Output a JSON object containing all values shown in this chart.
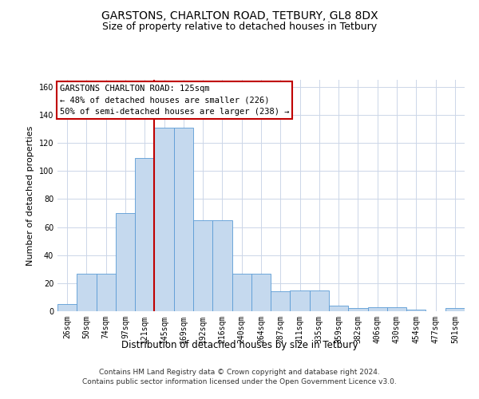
{
  "title": "GARSTONS, CHARLTON ROAD, TETBURY, GL8 8DX",
  "subtitle": "Size of property relative to detached houses in Tetbury",
  "xlabel": "Distribution of detached houses by size in Tetbury",
  "ylabel": "Number of detached properties",
  "categories": [
    "26sqm",
    "50sqm",
    "74sqm",
    "97sqm",
    "121sqm",
    "145sqm",
    "169sqm",
    "192sqm",
    "216sqm",
    "240sqm",
    "264sqm",
    "287sqm",
    "311sqm",
    "335sqm",
    "359sqm",
    "382sqm",
    "406sqm",
    "430sqm",
    "454sqm",
    "477sqm",
    "501sqm"
  ],
  "values": [
    5,
    27,
    27,
    70,
    109,
    131,
    131,
    65,
    65,
    27,
    27,
    14,
    15,
    15,
    4,
    2,
    3,
    3,
    1,
    0,
    2
  ],
  "bar_color": "#c5d9ee",
  "bar_edge_color": "#5b9bd5",
  "vline_x_index": 4,
  "vline_color": "#c00000",
  "ylim": [
    0,
    165
  ],
  "yticks": [
    0,
    20,
    40,
    60,
    80,
    100,
    120,
    140,
    160
  ],
  "annotation_text": "GARSTONS CHARLTON ROAD: 125sqm\n← 48% of detached houses are smaller (226)\n50% of semi-detached houses are larger (238) →",
  "annotation_box_color": "#ffffff",
  "annotation_box_edge": "#c00000",
  "footer_line1": "Contains HM Land Registry data © Crown copyright and database right 2024.",
  "footer_line2": "Contains public sector information licensed under the Open Government Licence v3.0.",
  "background_color": "#ffffff",
  "grid_color": "#ccd6e8",
  "title_fontsize": 10,
  "subtitle_fontsize": 9,
  "xlabel_fontsize": 8.5,
  "ylabel_fontsize": 8,
  "tick_fontsize": 7,
  "footer_fontsize": 6.5,
  "annot_fontsize": 7.5
}
